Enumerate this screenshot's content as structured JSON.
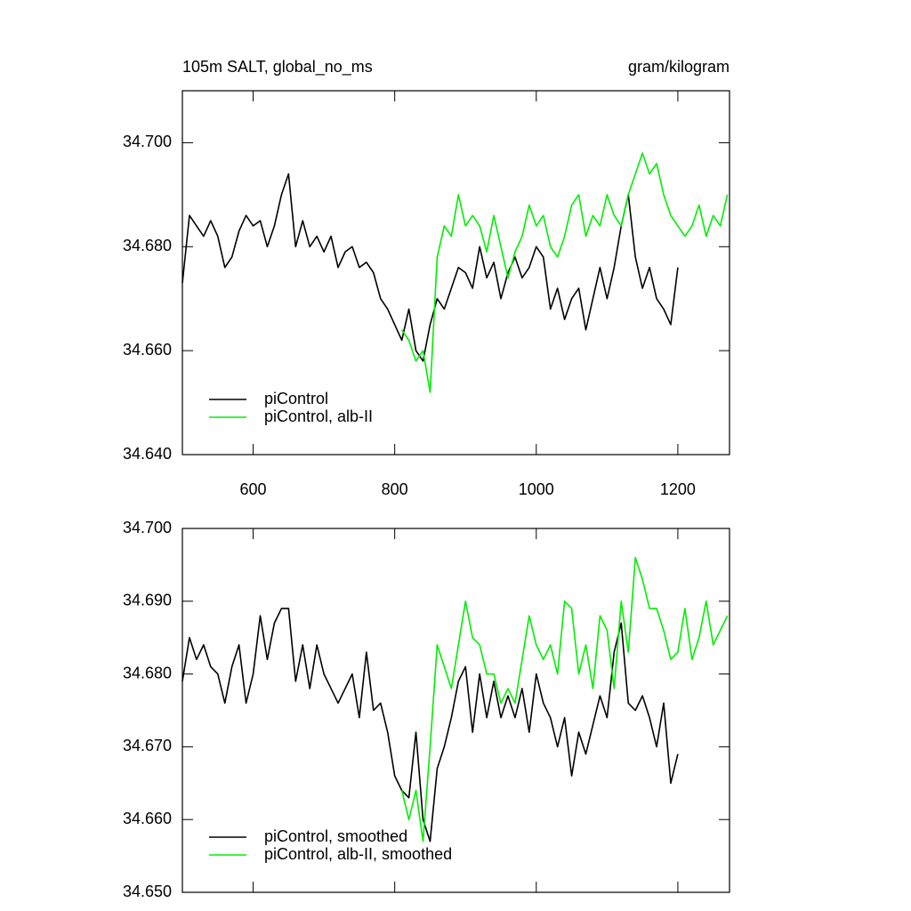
{
  "chart_data": [
    {
      "type": "line",
      "title": "105m SALT, global_no_ms",
      "units_label": "gram/kilogram",
      "xlim": [
        500,
        1273
      ],
      "xticks": [
        600,
        800,
        1000,
        1200
      ],
      "xtick_labels": true,
      "ylim": [
        34.64,
        34.71
      ],
      "yticks": [
        {
          "value": 34.64,
          "label": "34.640"
        },
        {
          "value": 34.66,
          "label": "34.660"
        },
        {
          "value": 34.68,
          "label": "34.680"
        },
        {
          "value": 34.7,
          "label": "34.700"
        }
      ],
      "legend": "lower left",
      "series": [
        {
          "name": "piControl",
          "color": "#000000",
          "x": [
            500,
            510,
            520,
            530,
            540,
            550,
            560,
            570,
            580,
            590,
            600,
            610,
            620,
            630,
            640,
            650,
            660,
            670,
            680,
            690,
            700,
            710,
            720,
            730,
            740,
            750,
            760,
            770,
            780,
            790,
            800,
            810,
            820,
            830,
            840,
            850,
            860,
            870,
            880,
            890,
            900,
            910,
            920,
            930,
            940,
            950,
            960,
            970,
            980,
            990,
            1000,
            1010,
            1020,
            1030,
            1040,
            1050,
            1060,
            1070,
            1080,
            1090,
            1100,
            1110,
            1120,
            1130,
            1140,
            1150,
            1160,
            1170,
            1180,
            1190,
            1200
          ],
          "values": [
            34.673,
            34.686,
            34.684,
            34.682,
            34.685,
            34.682,
            34.676,
            34.678,
            34.683,
            34.686,
            34.684,
            34.685,
            34.68,
            34.684,
            34.69,
            34.694,
            34.68,
            34.685,
            34.68,
            34.682,
            34.679,
            34.682,
            34.676,
            34.679,
            34.68,
            34.676,
            34.677,
            34.675,
            34.67,
            34.668,
            34.665,
            34.662,
            34.668,
            34.66,
            34.658,
            34.665,
            34.67,
            34.668,
            34.672,
            34.676,
            34.675,
            34.672,
            34.68,
            34.674,
            34.677,
            34.67,
            34.675,
            34.678,
            34.674,
            34.676,
            34.68,
            34.678,
            34.668,
            34.672,
            34.666,
            34.67,
            34.672,
            34.664,
            34.67,
            34.676,
            34.67,
            34.676,
            34.684,
            34.69,
            34.678,
            34.672,
            34.676,
            34.67,
            34.668,
            34.665,
            34.676
          ]
        },
        {
          "name": "piControl, alb-II",
          "color": "#00ee00",
          "x": [
            810,
            820,
            830,
            840,
            850,
            860,
            870,
            880,
            890,
            900,
            910,
            920,
            930,
            940,
            950,
            960,
            970,
            980,
            990,
            1000,
            1010,
            1020,
            1030,
            1040,
            1050,
            1060,
            1070,
            1080,
            1090,
            1100,
            1110,
            1120,
            1130,
            1140,
            1150,
            1160,
            1170,
            1180,
            1190,
            1200,
            1210,
            1220,
            1230,
            1240,
            1250,
            1260,
            1270
          ],
          "values": [
            34.664,
            34.662,
            34.658,
            34.66,
            34.652,
            34.678,
            34.684,
            34.682,
            34.69,
            34.684,
            34.686,
            34.684,
            34.679,
            34.686,
            34.68,
            34.674,
            34.679,
            34.682,
            34.688,
            34.684,
            34.686,
            34.68,
            34.678,
            34.682,
            34.688,
            34.69,
            34.682,
            34.686,
            34.684,
            34.69,
            34.686,
            34.684,
            34.69,
            34.694,
            34.698,
            34.694,
            34.696,
            34.69,
            34.686,
            34.684,
            34.682,
            34.684,
            34.688,
            34.682,
            34.686,
            34.684,
            34.69
          ]
        }
      ]
    },
    {
      "type": "line",
      "xlim": [
        500,
        1273
      ],
      "xticks": [
        600,
        800,
        1000,
        1200
      ],
      "xtick_labels": false,
      "ylim": [
        34.65,
        34.7
      ],
      "yticks": [
        {
          "value": 34.65,
          "label": "34.650"
        },
        {
          "value": 34.66,
          "label": "34.660"
        },
        {
          "value": 34.67,
          "label": "34.670"
        },
        {
          "value": 34.68,
          "label": "34.680"
        },
        {
          "value": 34.69,
          "label": "34.690"
        },
        {
          "value": 34.7,
          "label": "34.700"
        }
      ],
      "legend": "lower left",
      "series": [
        {
          "name": "piControl, smoothed",
          "color": "#000000",
          "x": [
            500,
            510,
            520,
            530,
            540,
            550,
            560,
            570,
            580,
            590,
            600,
            610,
            620,
            630,
            640,
            650,
            660,
            670,
            680,
            690,
            700,
            710,
            720,
            730,
            740,
            750,
            760,
            770,
            780,
            790,
            800,
            810,
            820,
            830,
            840,
            850,
            860,
            870,
            880,
            890,
            900,
            910,
            920,
            930,
            940,
            950,
            960,
            970,
            980,
            990,
            1000,
            1010,
            1020,
            1030,
            1040,
            1050,
            1060,
            1070,
            1080,
            1090,
            1100,
            1110,
            1120,
            1130,
            1140,
            1150,
            1160,
            1170,
            1180,
            1190,
            1200
          ],
          "values": [
            34.679,
            34.685,
            34.682,
            34.684,
            34.681,
            34.68,
            34.676,
            34.681,
            34.684,
            34.676,
            34.68,
            34.688,
            34.682,
            34.687,
            34.689,
            34.689,
            34.679,
            34.684,
            34.678,
            34.684,
            34.68,
            34.678,
            34.676,
            34.678,
            34.68,
            34.674,
            34.683,
            34.675,
            34.676,
            34.672,
            34.666,
            34.664,
            34.663,
            34.672,
            34.66,
            34.657,
            34.667,
            34.67,
            34.674,
            34.679,
            34.681,
            34.672,
            34.68,
            34.674,
            34.679,
            34.674,
            34.677,
            34.674,
            34.678,
            34.672,
            34.68,
            34.676,
            34.674,
            34.67,
            34.674,
            34.666,
            34.672,
            34.669,
            34.673,
            34.677,
            34.674,
            34.683,
            34.687,
            34.676,
            34.675,
            34.677,
            34.674,
            34.67,
            34.676,
            34.665,
            34.669
          ]
        },
        {
          "name": "piControl, alb-II, smoothed",
          "color": "#00ee00",
          "x": [
            810,
            820,
            830,
            840,
            850,
            860,
            870,
            880,
            890,
            900,
            910,
            920,
            930,
            940,
            950,
            960,
            970,
            980,
            990,
            1000,
            1010,
            1020,
            1030,
            1040,
            1050,
            1060,
            1070,
            1080,
            1090,
            1100,
            1110,
            1120,
            1130,
            1140,
            1150,
            1160,
            1170,
            1180,
            1190,
            1200,
            1210,
            1220,
            1230,
            1240,
            1250,
            1260,
            1270
          ],
          "values": [
            34.664,
            34.66,
            34.664,
            34.657,
            34.67,
            34.684,
            34.681,
            34.678,
            34.684,
            34.69,
            34.685,
            34.684,
            34.68,
            34.68,
            34.676,
            34.678,
            34.676,
            34.682,
            34.688,
            34.684,
            34.682,
            34.684,
            34.68,
            34.69,
            34.689,
            34.68,
            34.684,
            34.678,
            34.688,
            34.686,
            34.678,
            34.69,
            34.683,
            34.696,
            34.693,
            34.689,
            34.689,
            34.686,
            34.682,
            34.683,
            34.689,
            34.682,
            34.685,
            34.69,
            34.684,
            34.686,
            34.688
          ]
        }
      ]
    }
  ]
}
